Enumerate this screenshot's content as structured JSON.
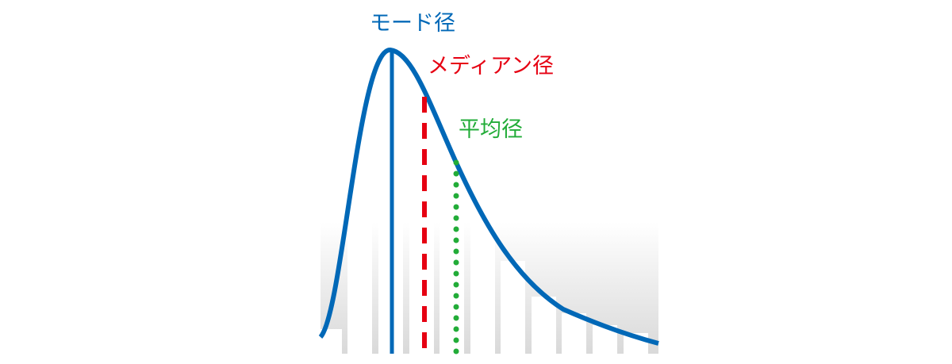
{
  "labels": {
    "mode": "モード径",
    "median": "メディアン径",
    "mean": "平均径"
  },
  "colors": {
    "mode": "#0068b7",
    "median": "#e60012",
    "mean": "#22ac38",
    "curve": "#0068b7",
    "background_gradient_bottom": "#d9d9d9"
  },
  "line_styles": {
    "mode": "solid",
    "median": "dashed",
    "mean": "dotted"
  }
}
